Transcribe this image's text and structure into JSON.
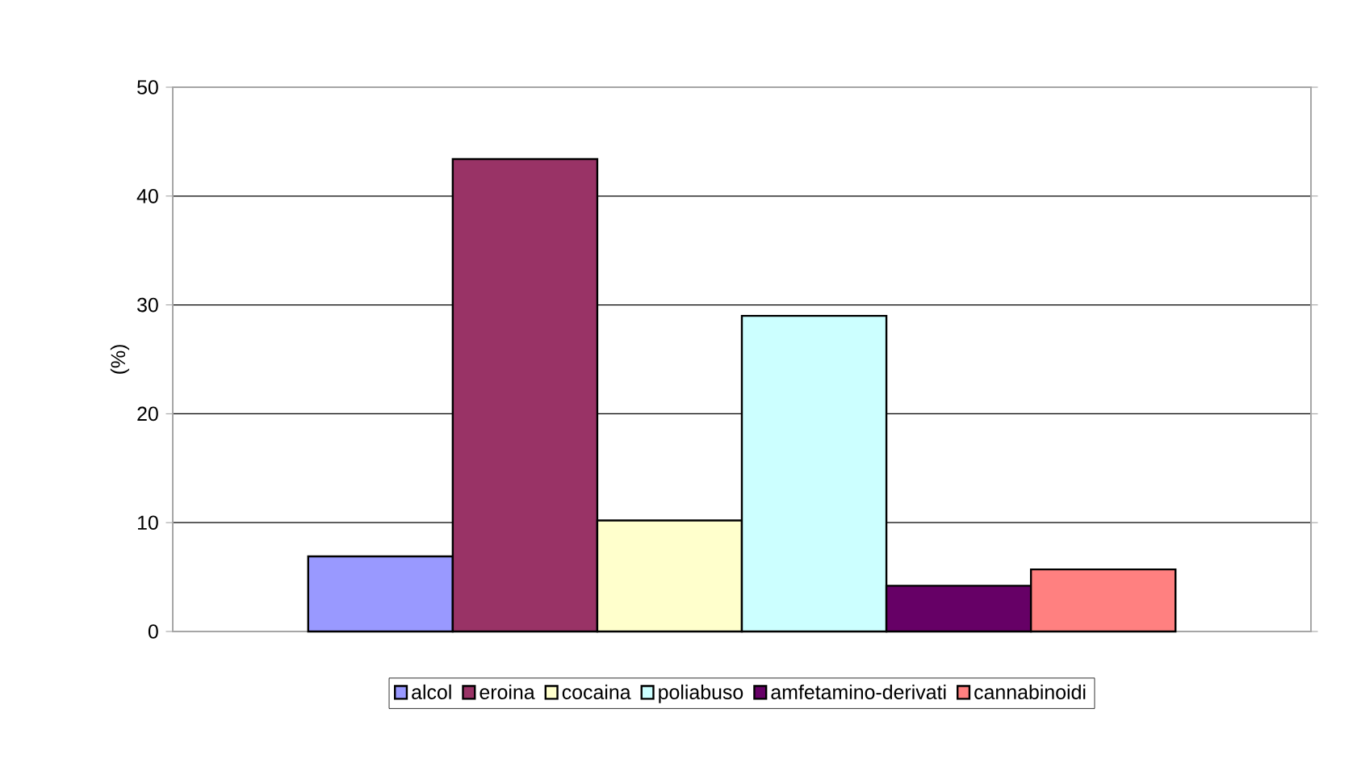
{
  "chart_data": {
    "type": "bar",
    "categories": [
      null
    ],
    "ylabel": "(%)",
    "ylim": [
      0,
      50
    ],
    "yticks": [
      0,
      10,
      20,
      30,
      40,
      50
    ],
    "grid": "y",
    "legend": "bottom",
    "series": [
      {
        "name": "alcol",
        "color": "#9999ff",
        "values": [
          6.9
        ]
      },
      {
        "name": "eroina",
        "color": "#993366",
        "values": [
          43.4
        ]
      },
      {
        "name": "cocaina",
        "color": "#ffffcc",
        "values": [
          10.2
        ]
      },
      {
        "name": "poliabuso",
        "color": "#ccffff",
        "values": [
          29.0
        ]
      },
      {
        "name": "amfetamino-derivati",
        "color": "#660066",
        "values": [
          4.2
        ]
      },
      {
        "name": "cannabinoidi",
        "color": "#ff8080",
        "values": [
          5.7
        ]
      }
    ]
  }
}
